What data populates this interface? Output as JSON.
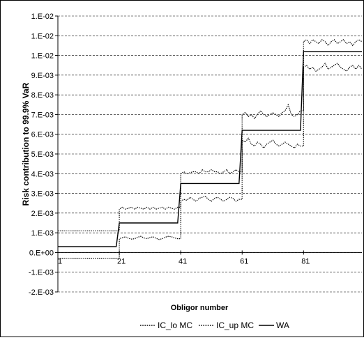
{
  "chart_data": {
    "type": "line",
    "title": "",
    "xlabel": "Obligor number",
    "ylabel": "Risk contribution to 99.9% VaR",
    "xlim": [
      1,
      100
    ],
    "ylim": [
      -0.002,
      0.012
    ],
    "ytick_values": [
      -0.002,
      -0.001,
      0,
      0.001,
      0.002,
      0.003,
      0.004,
      0.005,
      0.006,
      0.007,
      0.008,
      0.009,
      0.01,
      0.011,
      0.012
    ],
    "yticks": [
      "-2.E-03",
      "-1.E-03",
      "0.E+00",
      "1.E-03",
      "2.E-03",
      "3.E-03",
      "4.E-03",
      "5.E-03",
      "6.E-03",
      "7.E-03",
      "8.E-03",
      "9.E-03",
      "1.E-02",
      "1.E-02",
      "1.E-02"
    ],
    "xtick_values": [
      1,
      21,
      41,
      61,
      81
    ],
    "xticks": [
      "1",
      "21",
      "41",
      "61",
      "81"
    ],
    "grid": "horizontal dashed",
    "legend_position": "bottom",
    "series": [
      {
        "name": "IC_lo MC",
        "style": "dotted",
        "color": "#000000",
        "x": [
          1,
          2,
          3,
          4,
          5,
          6,
          7,
          8,
          9,
          10,
          11,
          12,
          13,
          14,
          15,
          16,
          17,
          18,
          19,
          20,
          21,
          22,
          23,
          24,
          25,
          26,
          27,
          28,
          29,
          30,
          31,
          32,
          33,
          34,
          35,
          36,
          37,
          38,
          39,
          40,
          41,
          42,
          43,
          44,
          45,
          46,
          47,
          48,
          49,
          50,
          51,
          52,
          53,
          54,
          55,
          56,
          57,
          58,
          59,
          60,
          61,
          62,
          63,
          64,
          65,
          66,
          67,
          68,
          69,
          70,
          71,
          72,
          73,
          74,
          75,
          76,
          77,
          78,
          79,
          80,
          81,
          82,
          83,
          84,
          85,
          86,
          87,
          88,
          89,
          90,
          91,
          92,
          93,
          94,
          95,
          96,
          97,
          98,
          99,
          100
        ],
        "values": [
          -0.0003,
          -0.0003,
          -0.0003,
          -0.0003,
          -0.0003,
          -0.0003,
          -0.0003,
          -0.0003,
          -0.0003,
          -0.0003,
          -0.0003,
          -0.0003,
          -0.0003,
          -0.0003,
          -0.0003,
          -0.0003,
          -0.0003,
          -0.0003,
          -0.0003,
          -0.0003,
          0.0007,
          0.00075,
          0.0008,
          0.00072,
          0.00068,
          0.0007,
          0.00078,
          0.00082,
          0.00074,
          0.0007,
          0.00076,
          0.0008,
          0.00072,
          0.00066,
          0.0007,
          0.00078,
          0.00082,
          0.0008,
          0.00074,
          0.0007,
          0.0026,
          0.0027,
          0.00265,
          0.0028,
          0.0027,
          0.0026,
          0.00275,
          0.0028,
          0.00285,
          0.0027,
          0.0026,
          0.00275,
          0.0028,
          0.0027,
          0.0026,
          0.0027,
          0.0028,
          0.00275,
          0.0026,
          0.0027,
          0.0057,
          0.0056,
          0.0058,
          0.0055,
          0.0054,
          0.0056,
          0.0055,
          0.0053,
          0.0055,
          0.0056,
          0.0057,
          0.0055,
          0.0054,
          0.0055,
          0.0056,
          0.0055,
          0.0054,
          0.0053,
          0.0055,
          0.0054,
          0.0094,
          0.0095,
          0.0093,
          0.0094,
          0.0092,
          0.0093,
          0.0094,
          0.0096,
          0.0093,
          0.0094,
          0.0095,
          0.0096,
          0.0094,
          0.0093,
          0.0092,
          0.0094,
          0.0095,
          0.0093,
          0.0095,
          0.0093
        ]
      },
      {
        "name": "IC_up MC",
        "style": "dotted",
        "color": "#000000",
        "x": [
          1,
          2,
          3,
          4,
          5,
          6,
          7,
          8,
          9,
          10,
          11,
          12,
          13,
          14,
          15,
          16,
          17,
          18,
          19,
          20,
          21,
          22,
          23,
          24,
          25,
          26,
          27,
          28,
          29,
          30,
          31,
          32,
          33,
          34,
          35,
          36,
          37,
          38,
          39,
          40,
          41,
          42,
          43,
          44,
          45,
          46,
          47,
          48,
          49,
          50,
          51,
          52,
          53,
          54,
          55,
          56,
          57,
          58,
          59,
          60,
          61,
          62,
          63,
          64,
          65,
          66,
          67,
          68,
          69,
          70,
          71,
          72,
          73,
          74,
          75,
          76,
          77,
          78,
          79,
          80,
          81,
          82,
          83,
          84,
          85,
          86,
          87,
          88,
          89,
          90,
          91,
          92,
          93,
          94,
          95,
          96,
          97,
          98,
          99,
          100
        ],
        "values": [
          0.0011,
          0.0011,
          0.0011,
          0.0011,
          0.0011,
          0.0011,
          0.0011,
          0.0011,
          0.0011,
          0.0011,
          0.0011,
          0.0011,
          0.0011,
          0.0011,
          0.0011,
          0.0011,
          0.0011,
          0.0011,
          0.0011,
          0.0011,
          0.0022,
          0.0023,
          0.0022,
          0.00225,
          0.0023,
          0.0022,
          0.0023,
          0.00225,
          0.0022,
          0.0023,
          0.0022,
          0.0023,
          0.0022,
          0.00225,
          0.0023,
          0.0022,
          0.0023,
          0.00225,
          0.0022,
          0.0023,
          0.004,
          0.0041,
          0.004,
          0.00405,
          0.0041,
          0.0041,
          0.004,
          0.0042,
          0.0041,
          0.0041,
          0.0042,
          0.0041,
          0.0041,
          0.004,
          0.0041,
          0.0042,
          0.004,
          0.0041,
          0.0042,
          0.0041,
          0.007,
          0.0071,
          0.0069,
          0.007,
          0.0068,
          0.007,
          0.0072,
          0.007,
          0.0069,
          0.007,
          0.0071,
          0.007,
          0.0069,
          0.0071,
          0.0072,
          0.0075,
          0.007,
          0.0069,
          0.007,
          0.0072,
          0.0107,
          0.0108,
          0.0106,
          0.0108,
          0.0107,
          0.0106,
          0.0108,
          0.0107,
          0.0105,
          0.0107,
          0.0108,
          0.0106,
          0.0107,
          0.0108,
          0.0106,
          0.0107,
          0.0105,
          0.0107,
          0.0108,
          0.0107
        ]
      },
      {
        "name": "WA",
        "style": "solid",
        "color": "#000000",
        "x": [
          1,
          20,
          21,
          40,
          41,
          60,
          61,
          80,
          81,
          100
        ],
        "values": [
          0.0003,
          0.0003,
          0.0015,
          0.0015,
          0.0035,
          0.0035,
          0.0062,
          0.0062,
          0.0102,
          0.0102
        ]
      }
    ]
  }
}
